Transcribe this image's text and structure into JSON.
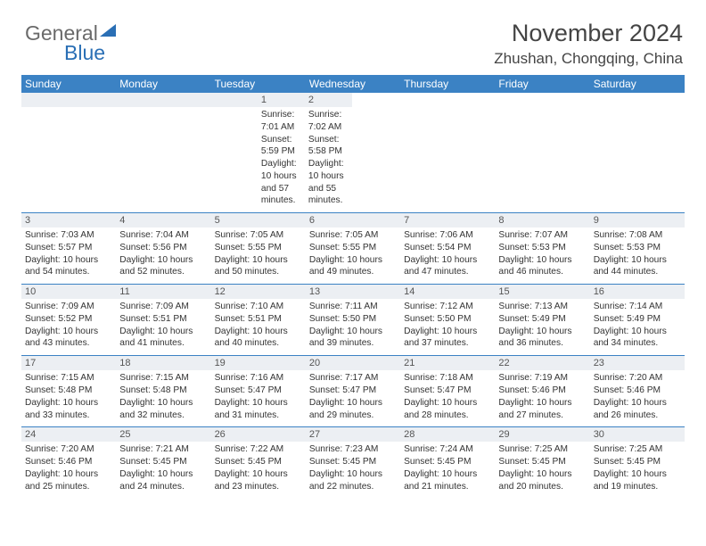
{
  "logo": {
    "text1": "General",
    "text2": "Blue"
  },
  "title": "November 2024",
  "subtitle": "Zhushan, Chongqing, China",
  "colors": {
    "header_bg": "#3b82c4",
    "header_text": "#ffffff",
    "subheader_bg": "#eceff3",
    "border": "#3b82c4",
    "body_text": "#333333",
    "logo_gray": "#6a6a6a",
    "logo_blue": "#2a6fb5"
  },
  "day_names": [
    "Sunday",
    "Monday",
    "Tuesday",
    "Wednesday",
    "Thursday",
    "Friday",
    "Saturday"
  ],
  "weeks": [
    [
      {
        "n": "",
        "sunrise": "",
        "sunset": "",
        "daylight": ""
      },
      {
        "n": "",
        "sunrise": "",
        "sunset": "",
        "daylight": ""
      },
      {
        "n": "",
        "sunrise": "",
        "sunset": "",
        "daylight": ""
      },
      {
        "n": "",
        "sunrise": "",
        "sunset": "",
        "daylight": ""
      },
      {
        "n": "",
        "sunrise": "",
        "sunset": "",
        "daylight": ""
      },
      {
        "n": "1",
        "sunrise": "7:01 AM",
        "sunset": "5:59 PM",
        "daylight": "10 hours and 57 minutes."
      },
      {
        "n": "2",
        "sunrise": "7:02 AM",
        "sunset": "5:58 PM",
        "daylight": "10 hours and 55 minutes."
      }
    ],
    [
      {
        "n": "3",
        "sunrise": "7:03 AM",
        "sunset": "5:57 PM",
        "daylight": "10 hours and 54 minutes."
      },
      {
        "n": "4",
        "sunrise": "7:04 AM",
        "sunset": "5:56 PM",
        "daylight": "10 hours and 52 minutes."
      },
      {
        "n": "5",
        "sunrise": "7:05 AM",
        "sunset": "5:55 PM",
        "daylight": "10 hours and 50 minutes."
      },
      {
        "n": "6",
        "sunrise": "7:05 AM",
        "sunset": "5:55 PM",
        "daylight": "10 hours and 49 minutes."
      },
      {
        "n": "7",
        "sunrise": "7:06 AM",
        "sunset": "5:54 PM",
        "daylight": "10 hours and 47 minutes."
      },
      {
        "n": "8",
        "sunrise": "7:07 AM",
        "sunset": "5:53 PM",
        "daylight": "10 hours and 46 minutes."
      },
      {
        "n": "9",
        "sunrise": "7:08 AM",
        "sunset": "5:53 PM",
        "daylight": "10 hours and 44 minutes."
      }
    ],
    [
      {
        "n": "10",
        "sunrise": "7:09 AM",
        "sunset": "5:52 PM",
        "daylight": "10 hours and 43 minutes."
      },
      {
        "n": "11",
        "sunrise": "7:09 AM",
        "sunset": "5:51 PM",
        "daylight": "10 hours and 41 minutes."
      },
      {
        "n": "12",
        "sunrise": "7:10 AM",
        "sunset": "5:51 PM",
        "daylight": "10 hours and 40 minutes."
      },
      {
        "n": "13",
        "sunrise": "7:11 AM",
        "sunset": "5:50 PM",
        "daylight": "10 hours and 39 minutes."
      },
      {
        "n": "14",
        "sunrise": "7:12 AM",
        "sunset": "5:50 PM",
        "daylight": "10 hours and 37 minutes."
      },
      {
        "n": "15",
        "sunrise": "7:13 AM",
        "sunset": "5:49 PM",
        "daylight": "10 hours and 36 minutes."
      },
      {
        "n": "16",
        "sunrise": "7:14 AM",
        "sunset": "5:49 PM",
        "daylight": "10 hours and 34 minutes."
      }
    ],
    [
      {
        "n": "17",
        "sunrise": "7:15 AM",
        "sunset": "5:48 PM",
        "daylight": "10 hours and 33 minutes."
      },
      {
        "n": "18",
        "sunrise": "7:15 AM",
        "sunset": "5:48 PM",
        "daylight": "10 hours and 32 minutes."
      },
      {
        "n": "19",
        "sunrise": "7:16 AM",
        "sunset": "5:47 PM",
        "daylight": "10 hours and 31 minutes."
      },
      {
        "n": "20",
        "sunrise": "7:17 AM",
        "sunset": "5:47 PM",
        "daylight": "10 hours and 29 minutes."
      },
      {
        "n": "21",
        "sunrise": "7:18 AM",
        "sunset": "5:47 PM",
        "daylight": "10 hours and 28 minutes."
      },
      {
        "n": "22",
        "sunrise": "7:19 AM",
        "sunset": "5:46 PM",
        "daylight": "10 hours and 27 minutes."
      },
      {
        "n": "23",
        "sunrise": "7:20 AM",
        "sunset": "5:46 PM",
        "daylight": "10 hours and 26 minutes."
      }
    ],
    [
      {
        "n": "24",
        "sunrise": "7:20 AM",
        "sunset": "5:46 PM",
        "daylight": "10 hours and 25 minutes."
      },
      {
        "n": "25",
        "sunrise": "7:21 AM",
        "sunset": "5:45 PM",
        "daylight": "10 hours and 24 minutes."
      },
      {
        "n": "26",
        "sunrise": "7:22 AM",
        "sunset": "5:45 PM",
        "daylight": "10 hours and 23 minutes."
      },
      {
        "n": "27",
        "sunrise": "7:23 AM",
        "sunset": "5:45 PM",
        "daylight": "10 hours and 22 minutes."
      },
      {
        "n": "28",
        "sunrise": "7:24 AM",
        "sunset": "5:45 PM",
        "daylight": "10 hours and 21 minutes."
      },
      {
        "n": "29",
        "sunrise": "7:25 AM",
        "sunset": "5:45 PM",
        "daylight": "10 hours and 20 minutes."
      },
      {
        "n": "30",
        "sunrise": "7:25 AM",
        "sunset": "5:45 PM",
        "daylight": "10 hours and 19 minutes."
      }
    ]
  ],
  "labels": {
    "sunrise": "Sunrise:",
    "sunset": "Sunset:",
    "daylight": "Daylight:"
  }
}
